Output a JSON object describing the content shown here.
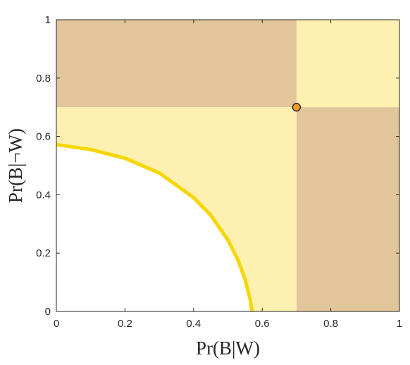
{
  "chart_data": {
    "type": "area",
    "title": "",
    "xlabel": "Pr(B|W)",
    "ylabel": "Pr(B|¬W)",
    "xlim": [
      0,
      1
    ],
    "ylim": [
      0,
      1
    ],
    "xticks": [
      0,
      0.2,
      0.4,
      0.6,
      0.8,
      1
    ],
    "yticks": [
      0,
      0.2,
      0.4,
      0.6,
      0.8,
      1
    ],
    "xtick_labels": [
      "0",
      "0.2",
      "0.4",
      "0.6",
      "0.8",
      "1"
    ],
    "ytick_labels": [
      "0",
      "0.2",
      "0.4",
      "0.6",
      "0.8",
      "1"
    ],
    "grid": false,
    "legend": "none",
    "colors": {
      "light_region": "#fdf0b0",
      "dark_region": "#e2c59a",
      "curve": "#f7d600",
      "marker_fill": "#f59a23",
      "marker_edge": "#1a1a1a",
      "axes": "#262626"
    },
    "point": {
      "x": 0.7,
      "y": 0.7
    },
    "regions": [
      {
        "name": "top-left",
        "x": [
          0,
          0.7
        ],
        "y": [
          0.7,
          1
        ],
        "shade": "dark"
      },
      {
        "name": "top-right",
        "x": [
          0.7,
          1
        ],
        "y": [
          0.7,
          1
        ],
        "shade": "light"
      },
      {
        "name": "bottom-right",
        "x": [
          0.7,
          1
        ],
        "y": [
          0,
          0.7
        ],
        "shade": "dark"
      },
      {
        "name": "bottom-left",
        "x": [
          0,
          0.7
        ],
        "y": [
          0,
          0.7
        ],
        "shade": "light"
      }
    ],
    "curve": {
      "x": [
        0,
        0.1,
        0.2,
        0.3,
        0.4,
        0.45,
        0.5,
        0.53,
        0.55,
        0.565,
        0.57
      ],
      "y": [
        0.572,
        0.555,
        0.525,
        0.475,
        0.39,
        0.33,
        0.245,
        0.175,
        0.11,
        0.04,
        0
      ]
    }
  }
}
